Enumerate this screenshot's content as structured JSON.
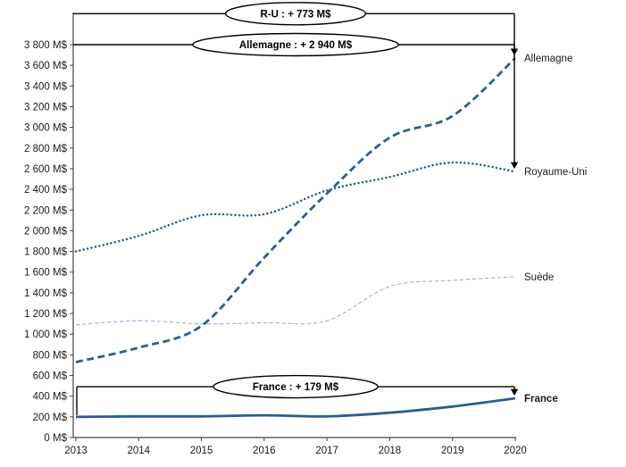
{
  "chart_data": {
    "type": "line",
    "title": "",
    "xlabel": "",
    "ylabel": "",
    "unit": "M$",
    "x": [
      2013,
      2014,
      2015,
      2016,
      2017,
      2018,
      2019,
      2020
    ],
    "ylim": [
      0,
      3800
    ],
    "ytick_step": 200,
    "ytick_labels": [
      "0 M$",
      "200 M$",
      "400 M$",
      "600 M$",
      "800 M$",
      "1 000 M$",
      "1 200 M$",
      "1 400 M$",
      "1 600 M$",
      "1 800 M$",
      "2 000 M$",
      "2 200 M$",
      "2 400 M$",
      "2 600 M$",
      "2 800 M$",
      "3 000 M$",
      "3 200 M$",
      "3 400 M$",
      "3 600 M$",
      "3 800 M$"
    ],
    "grid": false,
    "legend_position": "right-end-labels",
    "series": [
      {
        "name": "Suède",
        "values": [
          1090,
          1130,
          1100,
          1110,
          1130,
          1460,
          1520,
          1555
        ],
        "color": "#95B3D7",
        "style": "thin-dashed",
        "width": 1.1,
        "end_label": "Suède",
        "end_label_bold": false
      },
      {
        "name": "Royaume-Uni",
        "values": [
          1800,
          1950,
          2150,
          2160,
          2390,
          2520,
          2660,
          2573
        ],
        "color": "#2E5C8F",
        "style": "dotted",
        "width": 2.5,
        "end_label": "Royaume-Uni",
        "end_label_bold": false
      },
      {
        "name": "Allemagne",
        "values": [
          730,
          870,
          1080,
          1740,
          2360,
          2900,
          3110,
          3670
        ],
        "color": "#2E5C8F",
        "style": "dashed",
        "width": 2.8,
        "end_label": "Allemagne",
        "end_label_bold": false
      },
      {
        "name": "France",
        "values": [
          200,
          205,
          205,
          215,
          205,
          240,
          300,
          379
        ],
        "color": "#2E5C8F",
        "style": "solid",
        "width": 2.8,
        "end_label": "France",
        "end_label_bold": true
      }
    ],
    "annotations": [
      {
        "label": "R-U : + 773 M$",
        "target_series": "Royaume-Uni",
        "baseline_value": 4100,
        "start_connector": false
      },
      {
        "label": "Allemagne : + 2 940 M$",
        "target_series": "Allemagne",
        "baseline_value": 3800,
        "start_connector": false
      },
      {
        "label": "France : + 179 M$",
        "target_series": "France",
        "baseline_value": 492,
        "start_connector": true
      }
    ],
    "annotation_color": "#000000",
    "axis_color": "#404040",
    "text_color": "#1a1a1a"
  }
}
